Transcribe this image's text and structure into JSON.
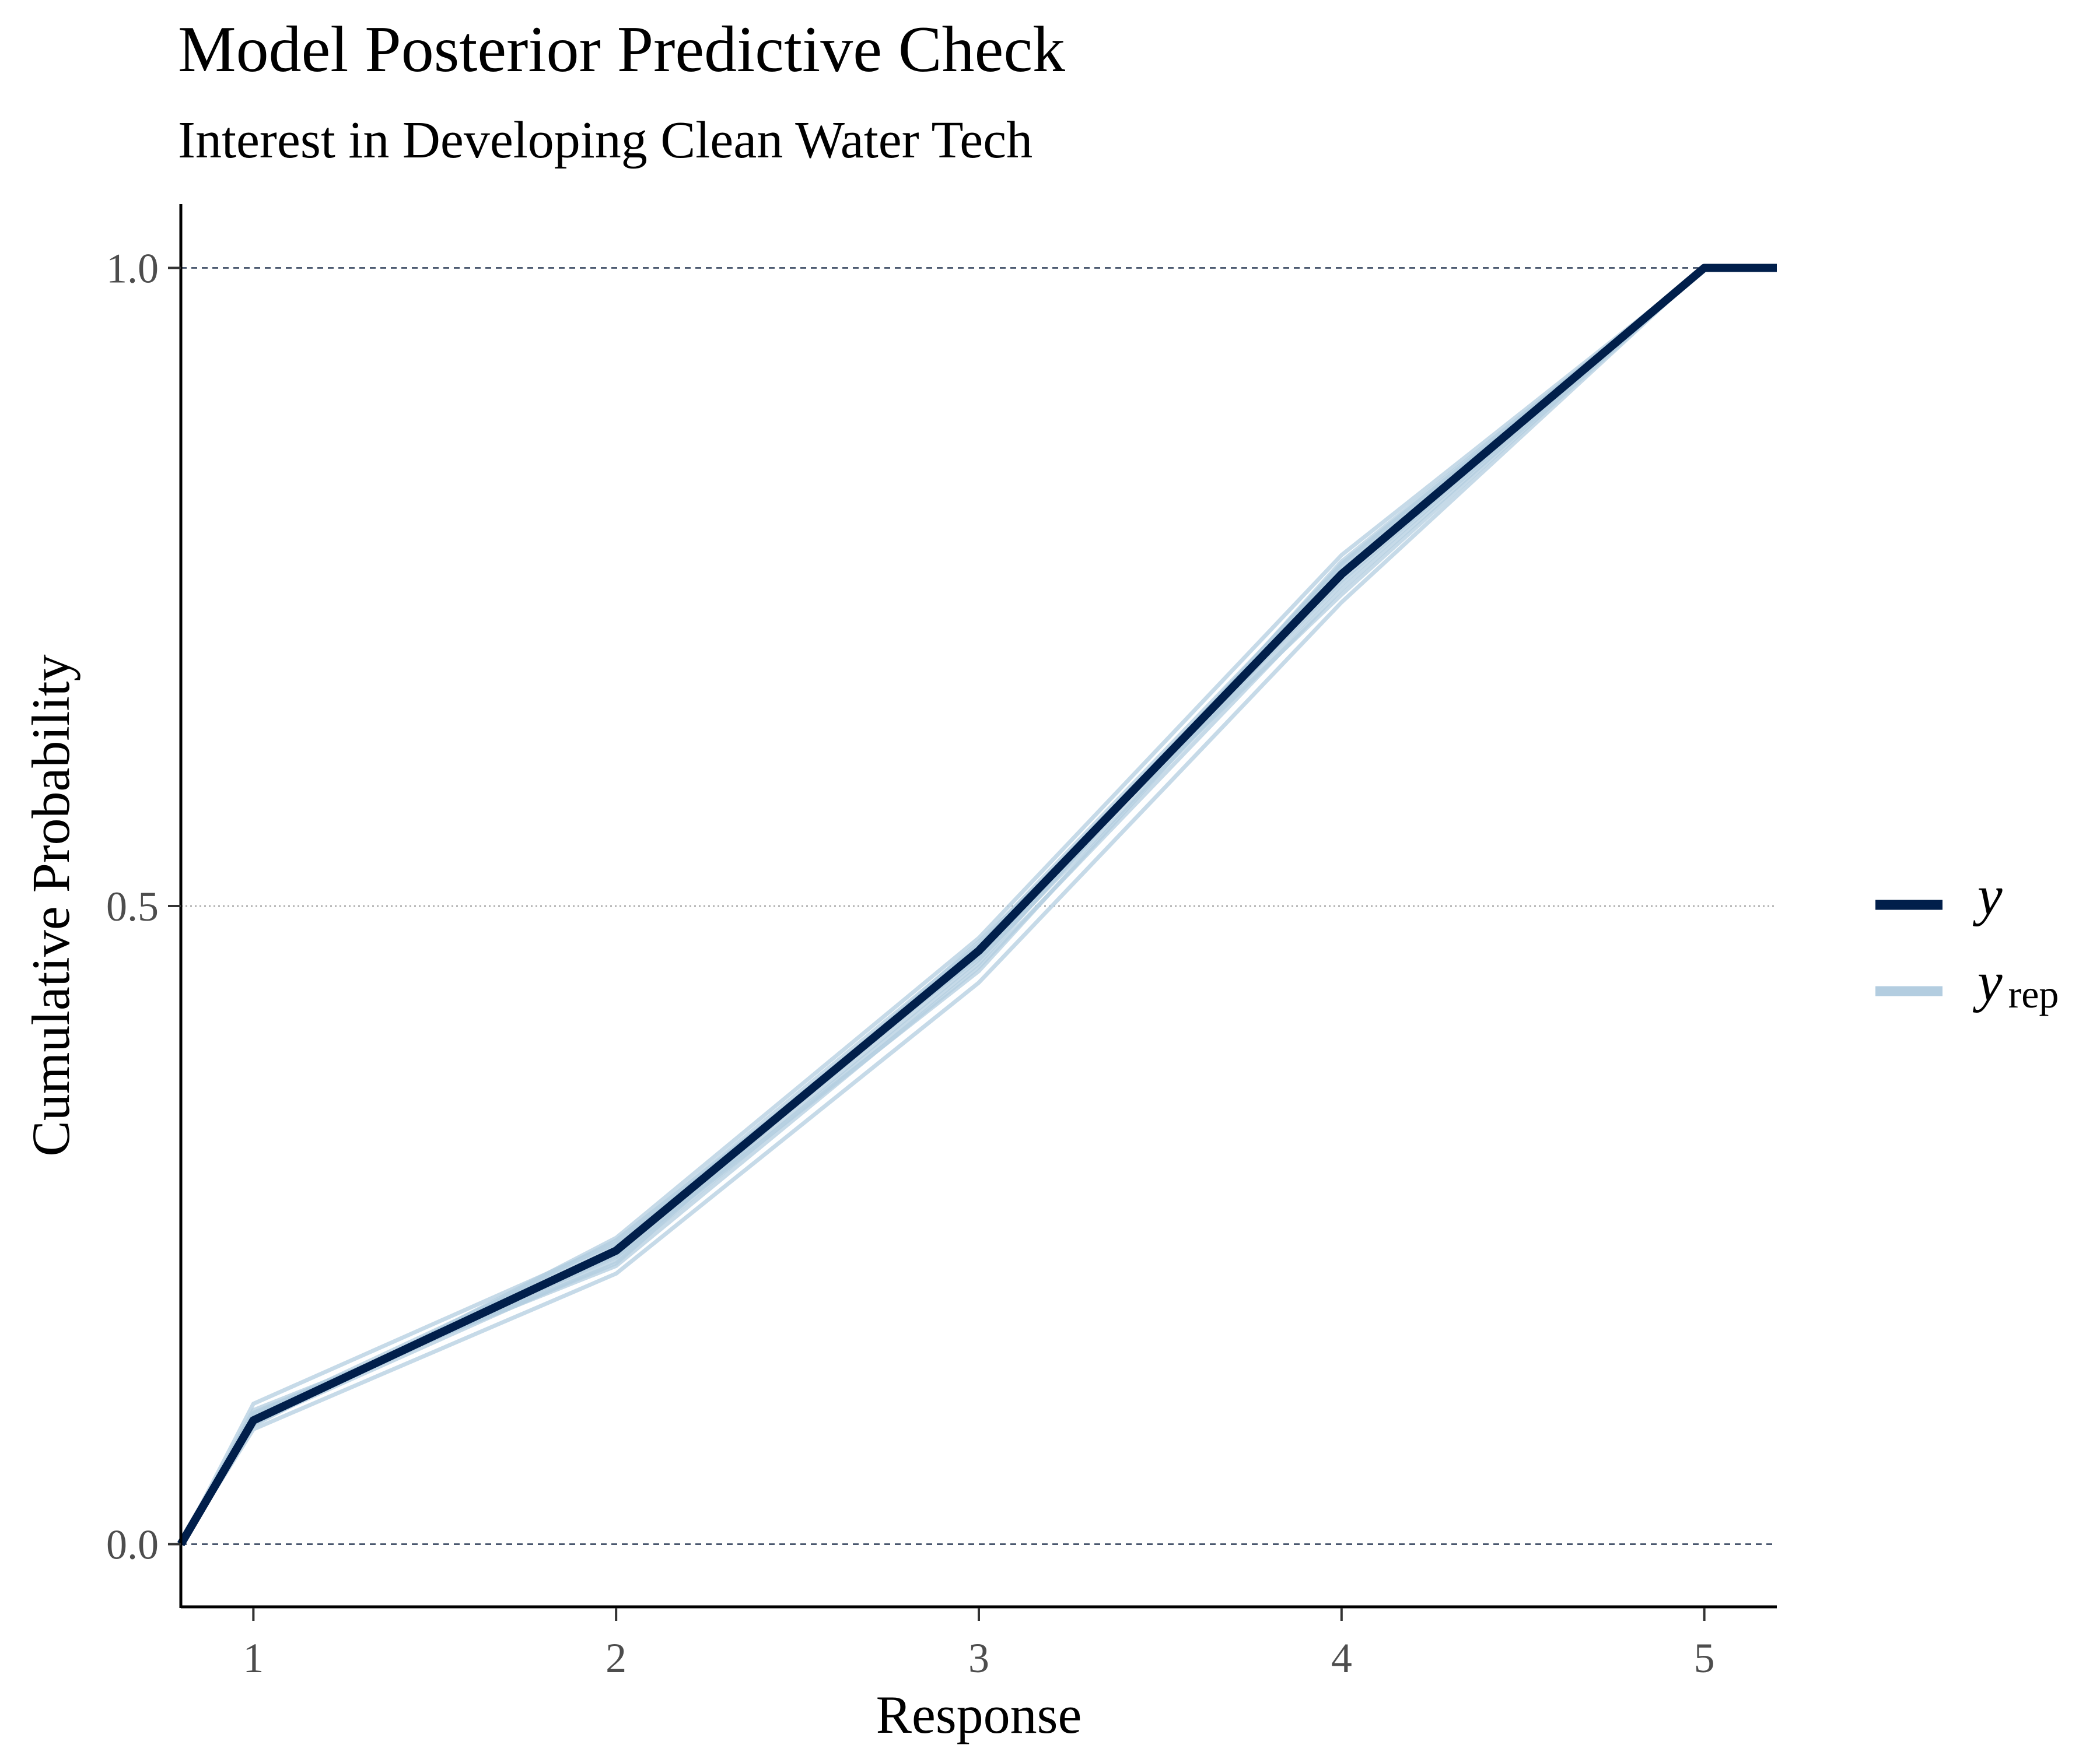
{
  "chart_data": {
    "type": "line",
    "title": "Model Posterior Predictive Check",
    "subtitle": "Interest in Developing Clean Water Tech",
    "xlabel": "Response",
    "ylabel": "Cumulative Probability",
    "xlim": [
      0.8,
      5.2
    ],
    "ylim": [
      -0.05,
      1.05
    ],
    "x_ticks": [
      1,
      2,
      3,
      4,
      5
    ],
    "x_tick_labels": [
      "1",
      "2",
      "3",
      "4",
      "5"
    ],
    "y_ticks": [
      0,
      0.5,
      1
    ],
    "y_tick_labels": [
      "0.0",
      "0.5",
      "1.0"
    ],
    "grid": "horizontal dashed reference lines at 0.0, 0.5 and 1.0",
    "legend": {
      "position": "right",
      "items": [
        {
          "key": "y",
          "label": "y",
          "color": "#011f4b"
        },
        {
          "key": "yrep",
          "label": "y",
          "sub": "rep",
          "color": "#b3cde0"
        }
      ]
    },
    "colors": {
      "y": "#011f4b",
      "yrep": "#b3cde0",
      "axis": "#000000",
      "tick_text": "#4d4d4d"
    },
    "series": [
      {
        "name": "y",
        "x": [
          0.8,
          1,
          2,
          3,
          4,
          5,
          5.2
        ],
        "values": [
          0.0,
          0.097,
          0.23,
          0.465,
          0.76,
          1.0,
          1.0
        ]
      }
    ],
    "replicates": [
      [
        0.0,
        0.098,
        0.232,
        0.468,
        0.763,
        1.0,
        1.0
      ],
      [
        0.0,
        0.102,
        0.225,
        0.458,
        0.752,
        1.0,
        1.0
      ],
      [
        0.0,
        0.093,
        0.24,
        0.475,
        0.775,
        1.0,
        1.0
      ],
      [
        0.0,
        0.105,
        0.218,
        0.452,
        0.748,
        1.0,
        1.0
      ],
      [
        0.0,
        0.11,
        0.236,
        0.47,
        0.766,
        1.0,
        1.0
      ],
      [
        0.0,
        0.09,
        0.212,
        0.44,
        0.738,
        1.0,
        1.0
      ],
      [
        0.0,
        0.099,
        0.228,
        0.462,
        0.758,
        1.0,
        1.0
      ],
      [
        0.0,
        0.095,
        0.222,
        0.455,
        0.77,
        1.0,
        1.0
      ],
      [
        0.0,
        0.101,
        0.234,
        0.466,
        0.755,
        1.0,
        1.0
      ],
      [
        0.0,
        0.096,
        0.226,
        0.449,
        0.76,
        1.0,
        1.0
      ],
      [
        0.0,
        0.103,
        0.22,
        0.472,
        0.744,
        1.0,
        1.0
      ],
      [
        0.0,
        0.094,
        0.238,
        0.46,
        0.768,
        1.0,
        1.0
      ]
    ]
  }
}
